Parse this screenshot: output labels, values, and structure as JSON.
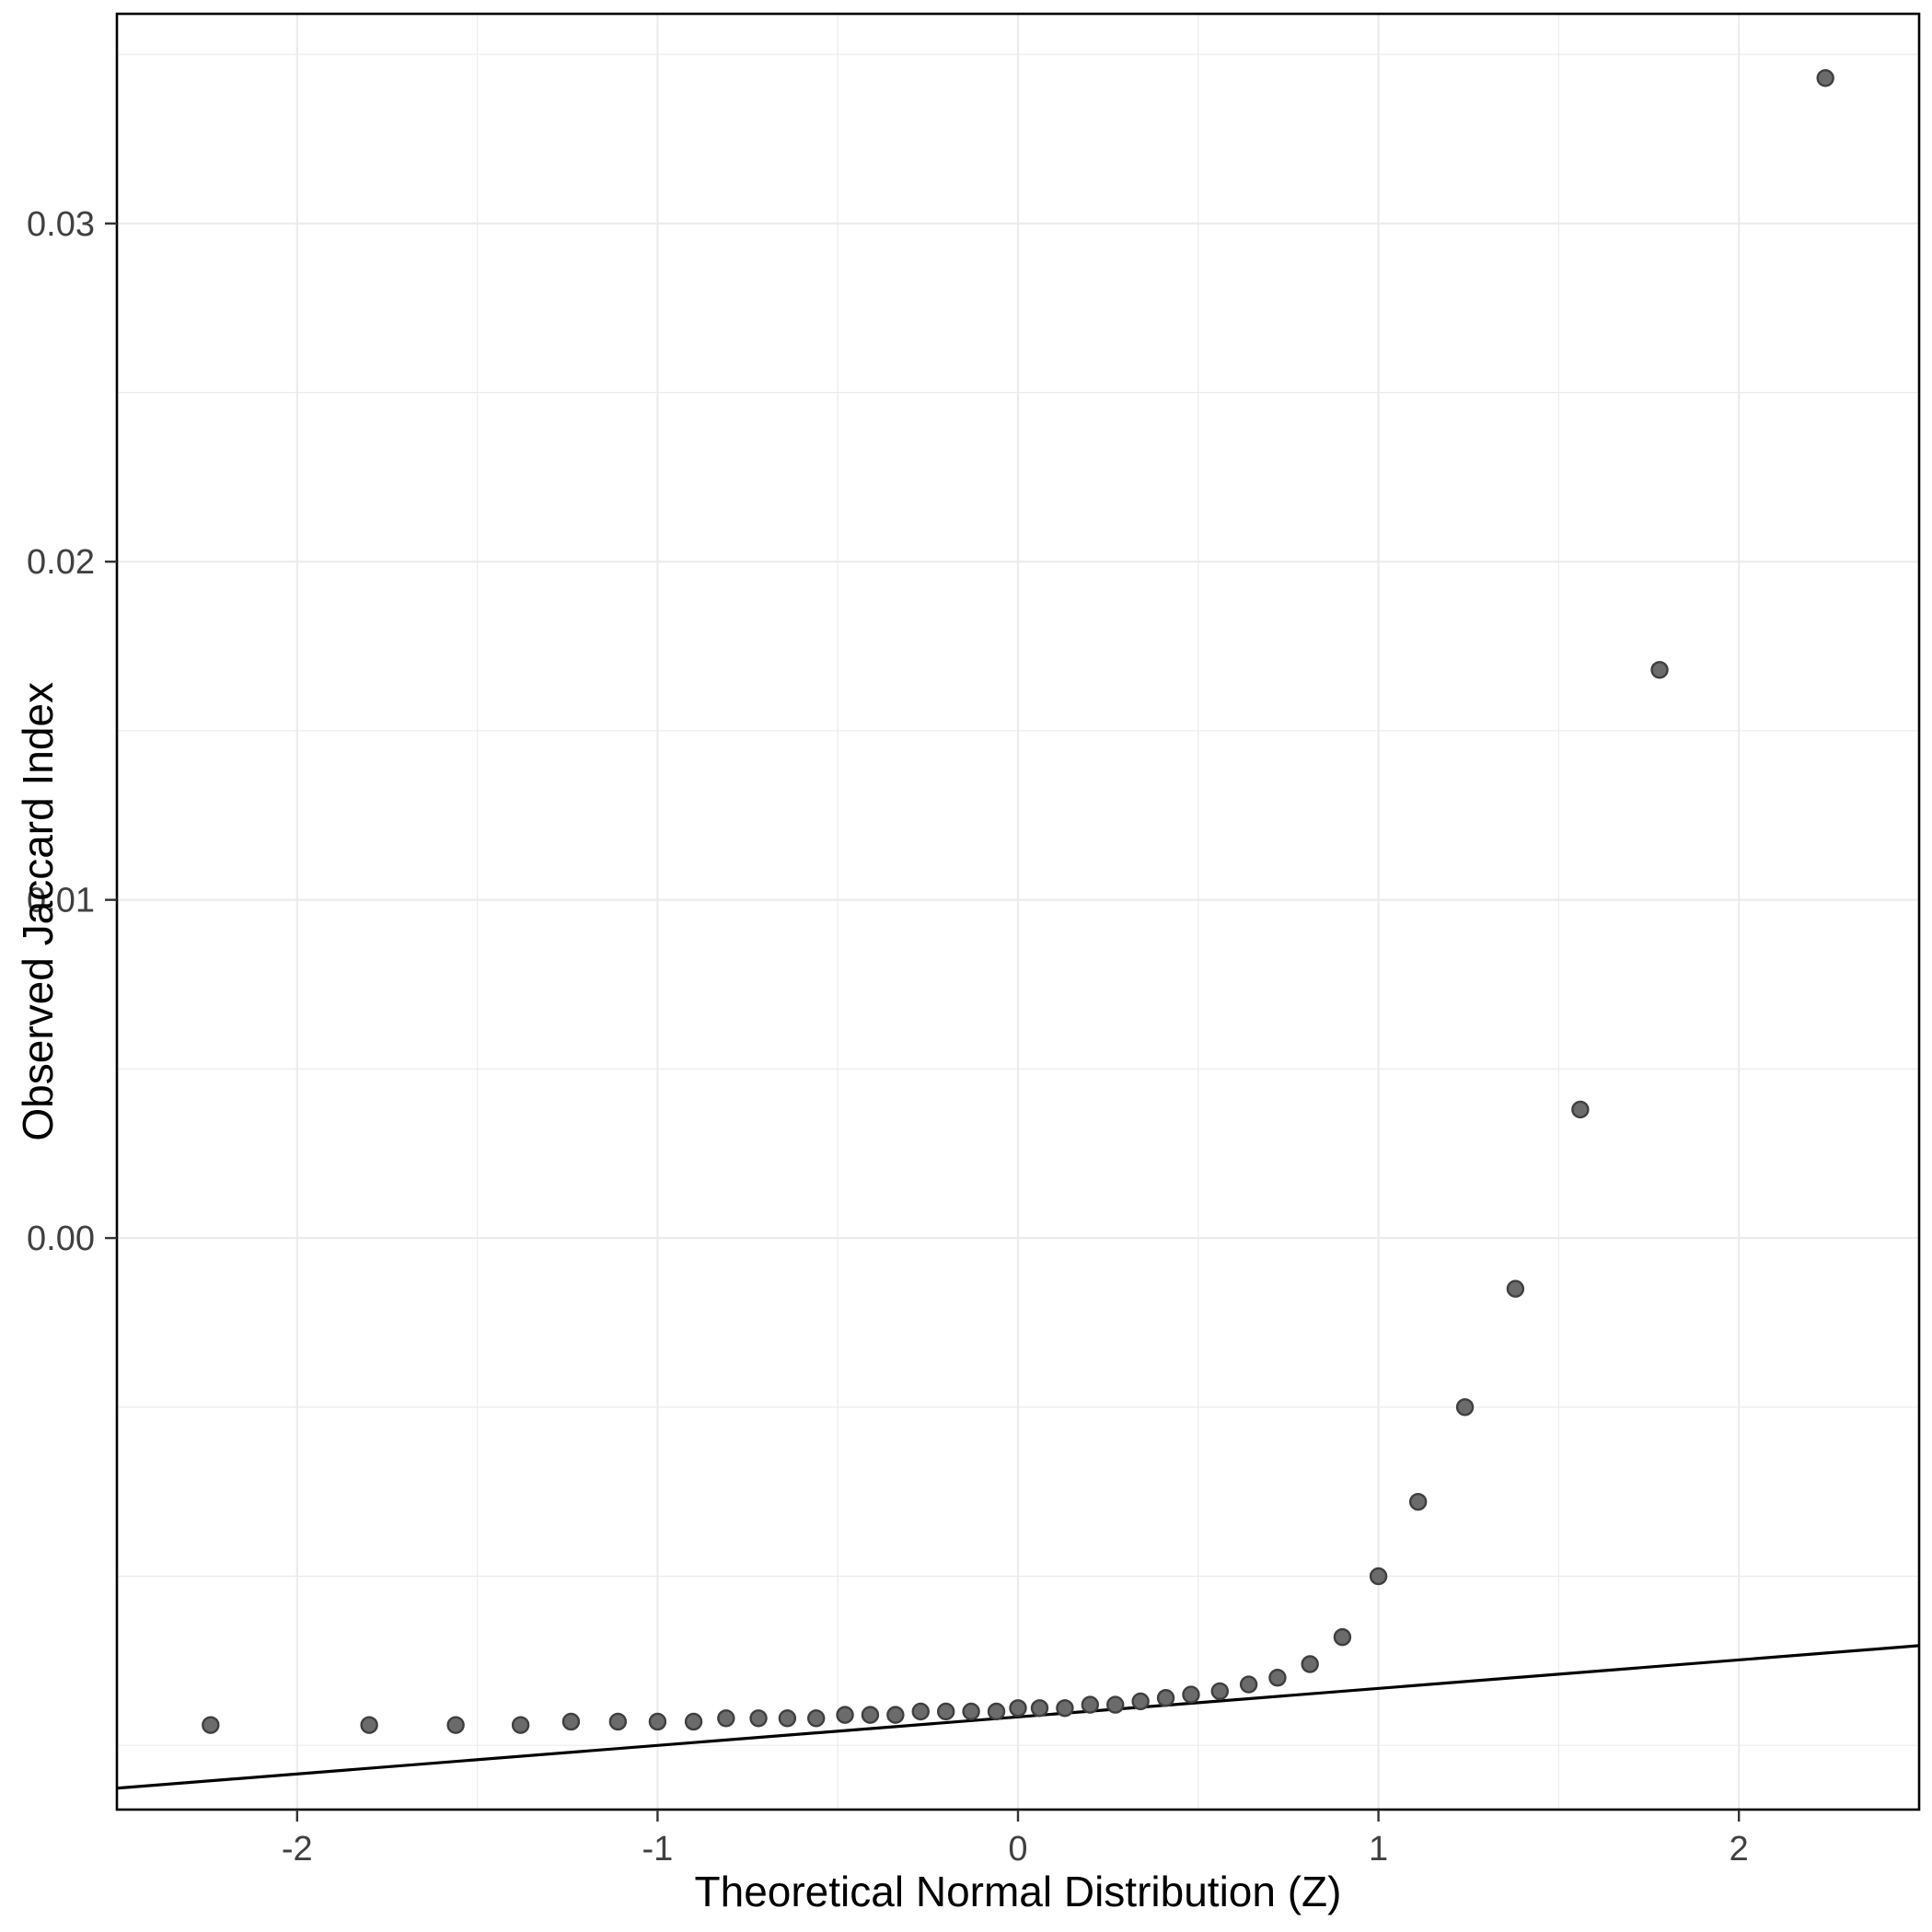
{
  "chart_data": {
    "type": "scatter",
    "subtype": "qq-plot",
    "title": "",
    "xlabel": "Theoretical Normal Distribution (Z)",
    "ylabel": "Observed Jaccard Index",
    "xlim": [
      -2.5,
      2.5
    ],
    "ylim": [
      -0.0169,
      0.0362
    ],
    "grid": true,
    "legend": false,
    "x_ticks": {
      "major": [
        -2,
        -1,
        0,
        1,
        2
      ],
      "labels": [
        "-2",
        "-1",
        "0",
        "1",
        "2"
      ],
      "minor": [
        -1.5,
        -0.5,
        0.5,
        1.5
      ]
    },
    "y_ticks": {
      "major": [
        0,
        0.01,
        0.02,
        0.03
      ],
      "labels": [
        "0.00",
        "0.01",
        "0.02",
        "0.03"
      ],
      "minor": [
        -0.015,
        -0.01,
        -0.005,
        0.005,
        0.015,
        0.025,
        0.035
      ]
    },
    "reference_line": {
      "intercept": -0.01416,
      "slope": 0.000843
    },
    "points": [
      [
        -2.24,
        -0.0144
      ],
      [
        -1.8,
        -0.0144
      ],
      [
        -1.56,
        -0.0144
      ],
      [
        -1.38,
        -0.0144
      ],
      [
        -1.24,
        -0.0143
      ],
      [
        -1.11,
        -0.0143
      ],
      [
        -1.0,
        -0.0143
      ],
      [
        -0.9,
        -0.0143
      ],
      [
        -0.81,
        -0.0142
      ],
      [
        -0.72,
        -0.0142
      ],
      [
        -0.64,
        -0.0142
      ],
      [
        -0.56,
        -0.0142
      ],
      [
        -0.48,
        -0.0141
      ],
      [
        -0.41,
        -0.0141
      ],
      [
        -0.34,
        -0.0141
      ],
      [
        -0.27,
        -0.014
      ],
      [
        -0.2,
        -0.014
      ],
      [
        -0.13,
        -0.014
      ],
      [
        -0.06,
        -0.014
      ],
      [
        0.0,
        -0.0139
      ],
      [
        0.06,
        -0.0139
      ],
      [
        0.13,
        -0.0139
      ],
      [
        0.2,
        -0.0138
      ],
      [
        0.27,
        -0.0138
      ],
      [
        0.34,
        -0.0137
      ],
      [
        0.41,
        -0.0136
      ],
      [
        0.48,
        -0.0135
      ],
      [
        0.56,
        -0.0134
      ],
      [
        0.64,
        -0.0132
      ],
      [
        0.72,
        -0.013
      ],
      [
        0.81,
        -0.0126
      ],
      [
        0.9,
        -0.0118
      ],
      [
        1.0,
        -0.01
      ],
      [
        1.11,
        -0.0078
      ],
      [
        1.24,
        -0.005
      ],
      [
        1.38,
        -0.0015
      ],
      [
        1.56,
        0.0038
      ],
      [
        1.78,
        0.0168
      ],
      [
        2.24,
        0.0343
      ]
    ],
    "colors": {
      "background": "#ffffff",
      "panel_background": "#ffffff",
      "grid": "#ebebeb",
      "panel_border": "#000000",
      "point_fill": "#6b6b6b",
      "point_stroke": "#3f3f3f",
      "reference_line": "#000000",
      "tick_label": "#404040",
      "tick_mark": "#333333",
      "axis_title": "#000000"
    }
  }
}
